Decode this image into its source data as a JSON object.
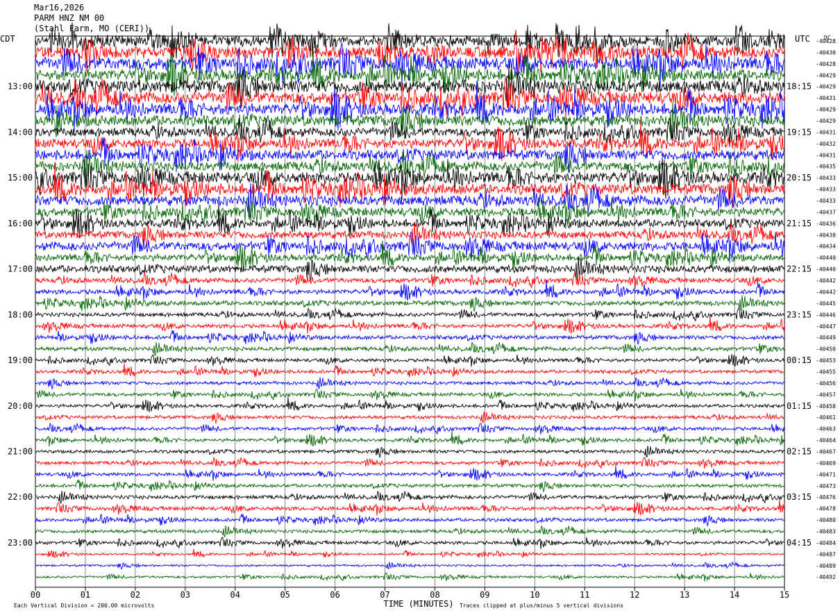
{
  "header": {
    "date": "Mar16,2026",
    "station": "PARM HNZ NM 00",
    "location": "(Stahl Farm, MO (CERI))"
  },
  "chart_data": {
    "type": "line",
    "title": "Mar16,2026 PARM HNZ NM 00 (Stahl Farm, MO (CERI))",
    "xlabel": "TIME (MINUTES)",
    "left_axis_label": "CDT",
    "right_axis_label": "UTC",
    "dc_label": "DC",
    "xlim": [
      0,
      15
    ],
    "x_ticks": [
      "00",
      "01",
      "02",
      "03",
      "04",
      "05",
      "06",
      "07",
      "08",
      "09",
      "10",
      "11",
      "12",
      "13",
      "14",
      "15"
    ],
    "cdt_hours": [
      "13:00",
      "14:00",
      "15:00",
      "16:00",
      "17:00",
      "18:00",
      "19:00",
      "20:00",
      "21:00",
      "22:00",
      "23:00"
    ],
    "utc_hours": [
      "18:15",
      "19:15",
      "20:15",
      "21:15",
      "22:15",
      "23:15",
      "00:15",
      "01:15",
      "02:15",
      "03:15",
      "04:15"
    ],
    "trace_colors": [
      "#000000",
      "#ff0000",
      "#0000ff",
      "#006400"
    ],
    "dc_offsets": [
      "-40428",
      "-40430",
      "-40428",
      "-40429",
      "-40429",
      "-40431",
      "-40429",
      "-40429",
      "-40431",
      "-40432",
      "-40431",
      "-40435",
      "-40433",
      "-40433",
      "-40433",
      "-40437",
      "-40436",
      "-40438",
      "-40434",
      "-40440",
      "-40440",
      "-40442",
      "-40442",
      "-40445",
      "-40446",
      "-40447",
      "-40449",
      "-40450",
      "-40453",
      "-40455",
      "-40456",
      "-40457",
      "-40458",
      "-40461",
      "-40463",
      "-40464",
      "-40467",
      "-40469",
      "-40471",
      "-40473",
      "-40476",
      "-40478",
      "-40480",
      "-40483",
      "-40484",
      "-40487",
      "-40489",
      "-40492"
    ],
    "trace_amplitude_scale": [
      1.6,
      1.8,
      1.9,
      1.7,
      1.9,
      1.8,
      1.7,
      1.6,
      1.3,
      1.4,
      1.5,
      1.4,
      1.7,
      1.6,
      1.5,
      1.3,
      1.2,
      1.1,
      1.3,
      1.0,
      1.1,
      0.7,
      0.7,
      0.7,
      0.6,
      0.6,
      0.6,
      0.6,
      0.5,
      0.5,
      0.5,
      0.5,
      0.5,
      0.5,
      0.5,
      0.5,
      0.5,
      0.5,
      0.5,
      0.5,
      0.55,
      0.55,
      0.5,
      0.5,
      0.5,
      0.3,
      0.3,
      0.35
    ],
    "footer_left": "Each Vertical Division =  200.00 microvolts",
    "footer_right": "Traces clipped at plus/minus 5 vertical divisions",
    "grid": true
  }
}
